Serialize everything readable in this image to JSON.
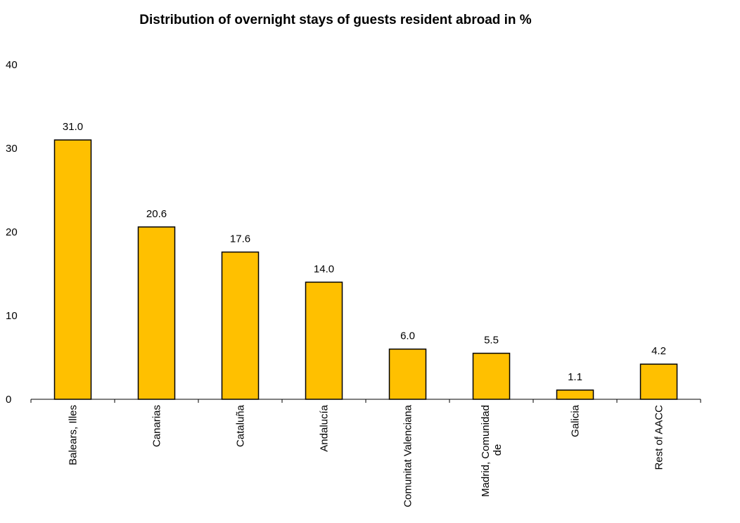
{
  "chart_data": {
    "type": "bar",
    "title": "Distribution of overnight stays of guests resident abroad in %",
    "xlabel": "",
    "ylabel": "",
    "categories": [
      "Balears, Illes",
      "Canarias",
      "Cataluña",
      "Andalucía",
      "Comunitat Valenciana",
      "Madrid, Comunidad de",
      "Galicia",
      "Rest of AACC"
    ],
    "category_label_lines": [
      [
        "Balears, Illes"
      ],
      [
        "Canarias"
      ],
      [
        "Cataluña"
      ],
      [
        "Andalucía"
      ],
      [
        "Comunitat Valenciana"
      ],
      [
        "Madrid, Comunidad",
        "de"
      ],
      [
        "Galicia"
      ],
      [
        "Rest of AACC"
      ]
    ],
    "values": [
      31.0,
      20.6,
      17.6,
      14.0,
      6.0,
      5.5,
      1.1,
      4.2
    ],
    "value_labels": [
      "31.0",
      "20.6",
      "17.6",
      "14.0",
      "6.0",
      "5.5",
      "1.1",
      "4.2"
    ],
    "ylim": [
      0,
      40
    ],
    "yticks": [
      0,
      10,
      20,
      30,
      40
    ],
    "grid": false,
    "legend": "none",
    "colors": {
      "bar_fill": "#FFC000",
      "bar_stroke": "#000000",
      "axis": "#000000"
    }
  }
}
